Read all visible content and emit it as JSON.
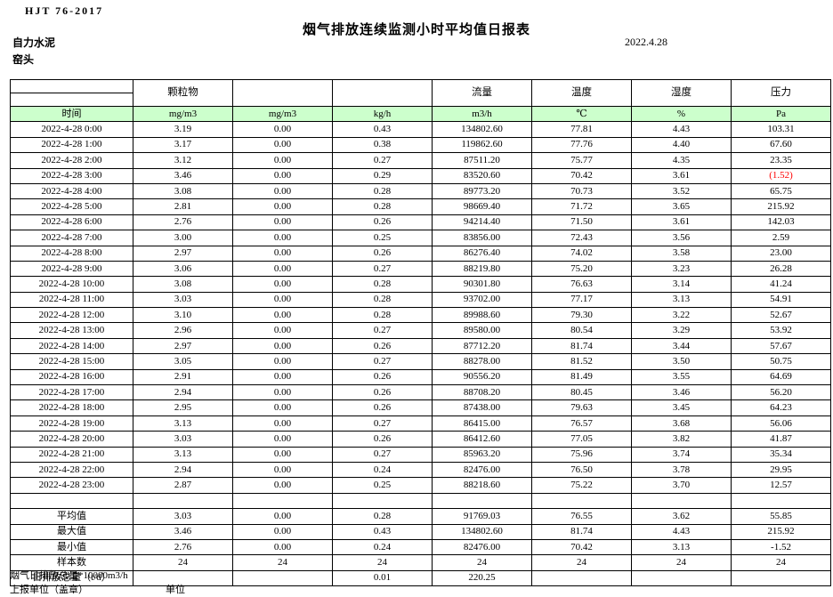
{
  "header": {
    "standard": "HJT 76-2017",
    "title": "烟气排放连续监测小时平均值日报表",
    "company": "自力水泥",
    "location": "窑头",
    "date": "2022.4.28"
  },
  "colors": {
    "header_green": "#CCFFCC",
    "alarm_red": "#FF0000"
  },
  "table": {
    "group_headers": [
      "",
      "颗粒物",
      "",
      "",
      "流量",
      "温度",
      "湿度",
      "压力"
    ],
    "unit_headers": [
      "时间",
      "mg/m3",
      "mg/m3",
      "kg/h",
      "m3/h",
      "℃",
      "%",
      "Pa"
    ],
    "rows": [
      [
        "2022-4-28 0:00",
        "3.19",
        "0.00",
        "0.43",
        "134802.60",
        "77.81",
        "4.43",
        "103.31"
      ],
      [
        "2022-4-28 1:00",
        "3.17",
        "0.00",
        "0.38",
        "119862.60",
        "77.76",
        "4.40",
        "67.60"
      ],
      [
        "2022-4-28 2:00",
        "3.12",
        "0.00",
        "0.27",
        "87511.20",
        "75.77",
        "4.35",
        "23.35"
      ],
      [
        "2022-4-28 3:00",
        "3.46",
        "0.00",
        "0.29",
        "83520.60",
        "70.42",
        "3.61",
        "(1.52)"
      ],
      [
        "2022-4-28 4:00",
        "3.08",
        "0.00",
        "0.28",
        "89773.20",
        "70.73",
        "3.52",
        "65.75"
      ],
      [
        "2022-4-28 5:00",
        "2.81",
        "0.00",
        "0.28",
        "98669.40",
        "71.72",
        "3.65",
        "215.92"
      ],
      [
        "2022-4-28 6:00",
        "2.76",
        "0.00",
        "0.26",
        "94214.40",
        "71.50",
        "3.61",
        "142.03"
      ],
      [
        "2022-4-28 7:00",
        "3.00",
        "0.00",
        "0.25",
        "83856.00",
        "72.43",
        "3.56",
        "2.59"
      ],
      [
        "2022-4-28 8:00",
        "2.97",
        "0.00",
        "0.26",
        "86276.40",
        "74.02",
        "3.58",
        "23.00"
      ],
      [
        "2022-4-28 9:00",
        "3.06",
        "0.00",
        "0.27",
        "88219.80",
        "75.20",
        "3.23",
        "26.28"
      ],
      [
        "2022-4-28 10:00",
        "3.08",
        "0.00",
        "0.28",
        "90301.80",
        "76.63",
        "3.14",
        "41.24"
      ],
      [
        "2022-4-28 11:00",
        "3.03",
        "0.00",
        "0.28",
        "93702.00",
        "77.17",
        "3.13",
        "54.91"
      ],
      [
        "2022-4-28 12:00",
        "3.10",
        "0.00",
        "0.28",
        "89988.60",
        "79.30",
        "3.22",
        "52.67"
      ],
      [
        "2022-4-28 13:00",
        "2.96",
        "0.00",
        "0.27",
        "89580.00",
        "80.54",
        "3.29",
        "53.92"
      ],
      [
        "2022-4-28 14:00",
        "2.97",
        "0.00",
        "0.26",
        "87712.20",
        "81.74",
        "3.44",
        "57.67"
      ],
      [
        "2022-4-28 15:00",
        "3.05",
        "0.00",
        "0.27",
        "88278.00",
        "81.52",
        "3.50",
        "50.75"
      ],
      [
        "2022-4-28 16:00",
        "2.91",
        "0.00",
        "0.26",
        "90556.20",
        "81.49",
        "3.55",
        "64.69"
      ],
      [
        "2022-4-28 17:00",
        "2.94",
        "0.00",
        "0.26",
        "88708.20",
        "80.45",
        "3.46",
        "56.20"
      ],
      [
        "2022-4-28 18:00",
        "2.95",
        "0.00",
        "0.26",
        "87438.00",
        "79.63",
        "3.45",
        "64.23"
      ],
      [
        "2022-4-28 19:00",
        "3.13",
        "0.00",
        "0.27",
        "86415.00",
        "76.57",
        "3.68",
        "56.06"
      ],
      [
        "2022-4-28 20:00",
        "3.03",
        "0.00",
        "0.26",
        "86412.60",
        "77.05",
        "3.82",
        "41.87"
      ],
      [
        "2022-4-28 21:00",
        "3.13",
        "0.00",
        "0.27",
        "85963.20",
        "75.96",
        "3.74",
        "35.34"
      ],
      [
        "2022-4-28 22:00",
        "2.94",
        "0.00",
        "0.24",
        "82476.00",
        "76.50",
        "3.78",
        "29.95"
      ],
      [
        "2022-4-28 23:00",
        "2.87",
        "0.00",
        "0.25",
        "88218.60",
        "75.22",
        "3.70",
        "12.57"
      ]
    ],
    "summary": [
      {
        "label": "平均值",
        "values": [
          "3.03",
          "0.00",
          "0.28",
          "91769.03",
          "76.55",
          "3.62",
          "55.85"
        ]
      },
      {
        "label": "最大值",
        "values": [
          "3.46",
          "0.00",
          "0.43",
          "134802.60",
          "81.74",
          "4.43",
          "215.92"
        ]
      },
      {
        "label": "最小值",
        "values": [
          "2.76",
          "0.00",
          "0.24",
          "82476.00",
          "70.42",
          "3.13",
          "-1.52"
        ]
      },
      {
        "label": "样本数",
        "values": [
          "24",
          "24",
          "24",
          "24",
          "24",
          "24",
          "24"
        ]
      },
      {
        "label": "日排放总量（t/d）",
        "values": [
          "",
          "",
          "0.01",
          "220.25",
          "",
          "",
          ""
        ]
      }
    ]
  },
  "footer": {
    "note_total": "烟气日排放总量*10000m3/h",
    "report_unit": "上报单位（盖章）",
    "unit_label": "单位"
  }
}
